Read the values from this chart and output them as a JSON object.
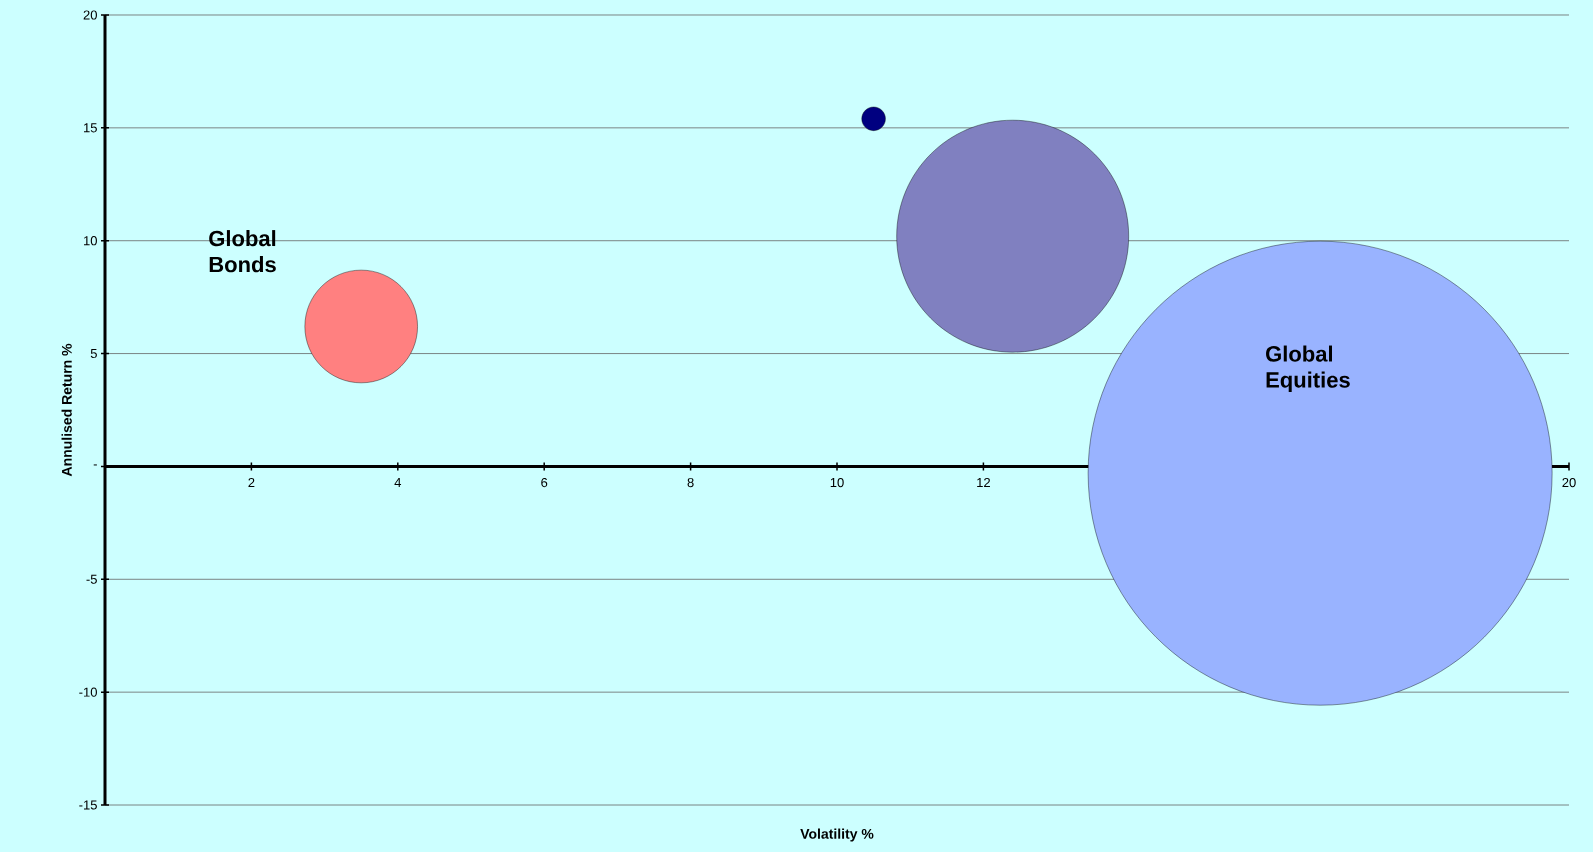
{
  "chart_data": {
    "type": "bubble",
    "xlabel": "Volatility %",
    "ylabel": "Annulised Return %",
    "xlim": [
      0,
      20
    ],
    "ylim": [
      -15,
      20
    ],
    "xticks": [
      2,
      4,
      6,
      8,
      10,
      12,
      20
    ],
    "yticks": [
      -15,
      -10,
      -5,
      {
        "value": 0,
        "label": "-"
      },
      5,
      10,
      15,
      20
    ],
    "grid": "y",
    "series": [
      {
        "name": "Global Bonds",
        "color": "#ff8080",
        "x": [
          3.5
        ],
        "values": [
          6.2
        ],
        "sizes": [
          0.059
        ]
      },
      {
        "color": "#000080",
        "x": [
          10.5
        ],
        "values": [
          15.4
        ],
        "sizes": [
          0.0026
        ]
      },
      {
        "color": "#8080c0",
        "x": [
          12.4
        ],
        "values": [
          10.2
        ],
        "sizes": [
          0.25
        ]
      },
      {
        "name": "Global Equities",
        "color": "#99b3ff",
        "x": [
          16.6
        ],
        "values": [
          -0.3
        ],
        "sizes": [
          1
        ]
      }
    ]
  }
}
